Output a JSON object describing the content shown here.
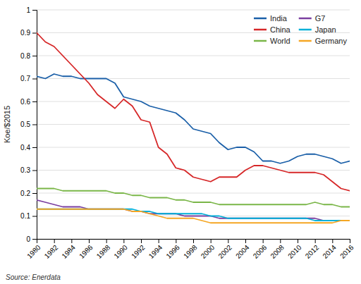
{
  "chart_data": {
    "type": "line",
    "ylabel": "Koe/$2015",
    "annotations": [
      "Source: Enerdata"
    ],
    "x": [
      1980,
      1981,
      1982,
      1983,
      1984,
      1985,
      1986,
      1987,
      1988,
      1989,
      1990,
      1991,
      1992,
      1993,
      1994,
      1995,
      1996,
      1997,
      1998,
      1999,
      2000,
      2001,
      2002,
      2003,
      2004,
      2005,
      2006,
      2007,
      2008,
      2009,
      2010,
      2011,
      2012,
      2013,
      2014,
      2015,
      2016
    ],
    "series": [
      {
        "name": "India",
        "color": "#1a5fa8",
        "values": [
          0.71,
          0.7,
          0.72,
          0.71,
          0.71,
          0.7,
          0.7,
          0.7,
          0.7,
          0.68,
          0.62,
          0.61,
          0.6,
          0.58,
          0.57,
          0.56,
          0.55,
          0.52,
          0.48,
          0.47,
          0.46,
          0.42,
          0.39,
          0.4,
          0.4,
          0.38,
          0.34,
          0.34,
          0.33,
          0.34,
          0.36,
          0.37,
          0.37,
          0.36,
          0.35,
          0.33,
          0.34
        ]
      },
      {
        "name": "China",
        "color": "#d62728",
        "values": [
          0.9,
          0.86,
          0.84,
          0.8,
          0.76,
          0.72,
          0.68,
          0.63,
          0.6,
          0.57,
          0.61,
          0.58,
          0.52,
          0.51,
          0.4,
          0.37,
          0.31,
          0.3,
          0.27,
          0.26,
          0.25,
          0.27,
          0.27,
          0.27,
          0.3,
          0.32,
          0.32,
          0.31,
          0.3,
          0.29,
          0.29,
          0.29,
          0.29,
          0.28,
          0.25,
          0.22,
          0.21
        ]
      },
      {
        "name": "World",
        "color": "#7ab648",
        "values": [
          0.22,
          0.22,
          0.22,
          0.21,
          0.21,
          0.21,
          0.21,
          0.21,
          0.21,
          0.2,
          0.2,
          0.19,
          0.19,
          0.18,
          0.18,
          0.18,
          0.17,
          0.17,
          0.16,
          0.16,
          0.16,
          0.15,
          0.15,
          0.15,
          0.15,
          0.15,
          0.15,
          0.15,
          0.15,
          0.15,
          0.15,
          0.15,
          0.16,
          0.15,
          0.15,
          0.14,
          0.14
        ]
      },
      {
        "name": "G7",
        "color": "#7b3fa0",
        "values": [
          0.17,
          0.16,
          0.15,
          0.14,
          0.14,
          0.14,
          0.13,
          0.13,
          0.13,
          0.13,
          0.13,
          0.12,
          0.12,
          0.11,
          0.11,
          0.11,
          0.11,
          0.1,
          0.1,
          0.1,
          0.1,
          0.09,
          0.09,
          0.09,
          0.09,
          0.09,
          0.09,
          0.09,
          0.09,
          0.09,
          0.09,
          0.09,
          0.09,
          0.08,
          0.08,
          0.08,
          0.08
        ]
      },
      {
        "name": "Japan",
        "color": "#00b0d8",
        "values": [
          0.13,
          0.13,
          0.13,
          0.13,
          0.13,
          0.13,
          0.13,
          0.13,
          0.13,
          0.13,
          0.13,
          0.13,
          0.12,
          0.12,
          0.11,
          0.11,
          0.11,
          0.11,
          0.11,
          0.11,
          0.1,
          0.1,
          0.09,
          0.09,
          0.09,
          0.09,
          0.09,
          0.09,
          0.09,
          0.09,
          0.09,
          0.09,
          0.08,
          0.08,
          0.08,
          0.08,
          0.08
        ]
      },
      {
        "name": "Germany",
        "color": "#f5a623",
        "values": [
          0.13,
          0.13,
          0.13,
          0.13,
          0.13,
          0.13,
          0.13,
          0.13,
          0.13,
          0.13,
          0.13,
          0.12,
          0.12,
          0.11,
          0.1,
          0.09,
          0.09,
          0.09,
          0.09,
          0.08,
          0.07,
          0.07,
          0.07,
          0.07,
          0.07,
          0.07,
          0.07,
          0.07,
          0.07,
          0.07,
          0.07,
          0.07,
          0.07,
          0.07,
          0.07,
          0.08,
          0.08
        ]
      }
    ],
    "xlim": [
      1980,
      2016
    ],
    "xticks": [
      1980,
      1982,
      1984,
      1986,
      1988,
      1990,
      1992,
      1994,
      1996,
      1998,
      2000,
      2002,
      2004,
      2006,
      2008,
      2010,
      2012,
      2014,
      2016
    ],
    "ylim": [
      0,
      1.0
    ],
    "yticks": [
      0,
      0.1,
      0.2,
      0.3,
      0.4,
      0.5,
      0.6,
      0.7,
      0.8,
      0.9,
      1
    ],
    "grid": "y",
    "legend": "upper right"
  }
}
